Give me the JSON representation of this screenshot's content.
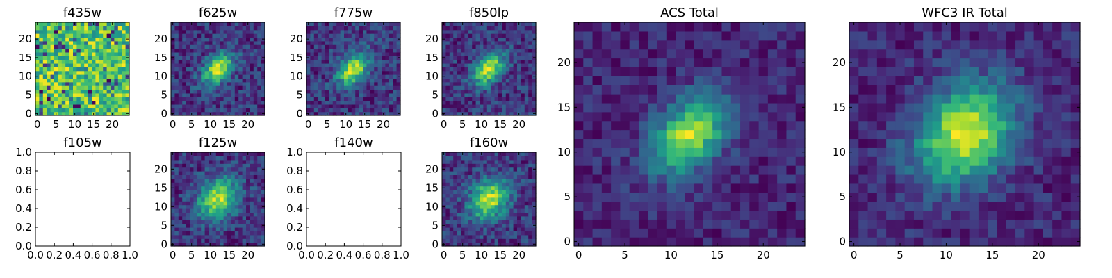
{
  "chart_data": [
    {
      "id": "f435w",
      "type": "heatmap",
      "title": "f435w",
      "pattern": "noise",
      "xlim": [
        0,
        24
      ],
      "ylim": [
        0,
        24
      ],
      "xticks": [
        "0",
        "5",
        "10",
        "15",
        "20"
      ],
      "yticks": [
        "0",
        "5",
        "10",
        "15",
        "20"
      ],
      "colormap": "viridis"
    },
    {
      "id": "f625w",
      "type": "heatmap",
      "title": "f625w",
      "pattern": "galaxy",
      "xlim": [
        0,
        24
      ],
      "ylim": [
        0,
        24
      ],
      "xticks": [
        "0",
        "5",
        "10",
        "15",
        "20"
      ],
      "yticks": [
        "0",
        "5",
        "10",
        "15",
        "20"
      ],
      "colormap": "viridis"
    },
    {
      "id": "f775w",
      "type": "heatmap",
      "title": "f775w",
      "pattern": "galaxy",
      "xlim": [
        0,
        24
      ],
      "ylim": [
        0,
        24
      ],
      "xticks": [
        "0",
        "5",
        "10",
        "15",
        "20"
      ],
      "yticks": [
        "0",
        "5",
        "10",
        "15",
        "20"
      ],
      "colormap": "viridis"
    },
    {
      "id": "f850lp",
      "type": "heatmap",
      "title": "f850lp",
      "pattern": "galaxy",
      "xlim": [
        0,
        24
      ],
      "ylim": [
        0,
        24
      ],
      "xticks": [
        "0",
        "5",
        "10",
        "15",
        "20"
      ],
      "yticks": [
        "0",
        "5",
        "10",
        "15",
        "20"
      ],
      "colormap": "viridis"
    },
    {
      "id": "f105w",
      "type": "empty",
      "title": "f105w",
      "xlim": [
        0,
        1
      ],
      "ylim": [
        0,
        1
      ],
      "xticks": [
        "0.0",
        "0.2",
        "0.4",
        "0.6",
        "0.8",
        "1.0"
      ],
      "yticks": [
        "0.0",
        "0.2",
        "0.4",
        "0.6",
        "0.8",
        "1.0"
      ]
    },
    {
      "id": "f125w",
      "type": "heatmap",
      "title": "f125w",
      "pattern": "galaxy",
      "xlim": [
        0,
        24
      ],
      "ylim": [
        0,
        24
      ],
      "xticks": [
        "0",
        "5",
        "10",
        "15",
        "20"
      ],
      "yticks": [
        "0",
        "5",
        "10",
        "15",
        "20"
      ],
      "colormap": "viridis"
    },
    {
      "id": "f140w",
      "type": "empty",
      "title": "f140w",
      "xlim": [
        0,
        1
      ],
      "ylim": [
        0,
        1
      ],
      "xticks": [
        "0.0",
        "0.2",
        "0.4",
        "0.6",
        "0.8",
        "1.0"
      ],
      "yticks": [
        "0.0",
        "0.2",
        "0.4",
        "0.6",
        "0.8",
        "1.0"
      ]
    },
    {
      "id": "f160w",
      "type": "heatmap",
      "title": "f160w",
      "pattern": "galaxy",
      "xlim": [
        0,
        24
      ],
      "ylim": [
        0,
        24
      ],
      "xticks": [
        "0",
        "5",
        "10",
        "15",
        "20"
      ],
      "yticks": [
        "0",
        "5",
        "10",
        "15",
        "20"
      ],
      "colormap": "viridis"
    },
    {
      "id": "acs-total",
      "type": "heatmap",
      "title": "ACS Total",
      "pattern": "galaxy",
      "xlim": [
        0,
        24
      ],
      "ylim": [
        0,
        24
      ],
      "xticks": [
        "0",
        "5",
        "10",
        "15",
        "20"
      ],
      "yticks": [
        "0",
        "5",
        "10",
        "15",
        "20"
      ],
      "colormap": "viridis"
    },
    {
      "id": "wfc3-ir-total",
      "type": "heatmap",
      "title": "WFC3 IR Total",
      "pattern": "galaxy",
      "xlim": [
        0,
        24
      ],
      "ylim": [
        0,
        24
      ],
      "xticks": [
        "0",
        "5",
        "10",
        "15",
        "20"
      ],
      "yticks": [
        "0",
        "5",
        "10",
        "15",
        "20"
      ],
      "colormap": "viridis"
    }
  ]
}
